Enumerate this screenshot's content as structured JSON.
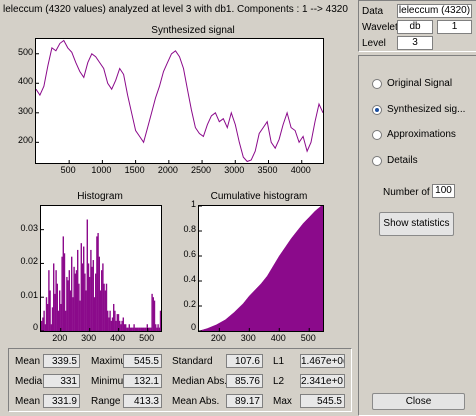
{
  "header": {
    "title": "leleccum (4320 values) analyzed at level 3 with db1.  Components :   1 --> 4320"
  },
  "info": {
    "data_label": "Data",
    "data_value": "leleccum  (4320)",
    "wavelet_label": "Wavelet",
    "wavelet_family": "db",
    "wavelet_order": "1",
    "level_label": "Level",
    "level_value": "3"
  },
  "options": {
    "items": [
      {
        "label": "Original Signal",
        "selected": false
      },
      {
        "label": "Synthesized sig...",
        "selected": true
      },
      {
        "label": "Approximations",
        "selected": false
      },
      {
        "label": "Details",
        "selected": false
      }
    ],
    "number_of_label": "Number of",
    "number_of_value": "100",
    "show_stats_label": "Show statistics",
    "close_label": "Close"
  },
  "colors": {
    "plot": "#8b0a8b",
    "panel": "#d4d0c8",
    "accent": "#1c4fa0"
  },
  "synth": {
    "title": "Synthesized signal",
    "x_ticks": [
      "500",
      "1000",
      "1500",
      "2000",
      "2500",
      "3000",
      "3500",
      "4000"
    ],
    "y_ticks": [
      "500",
      "400",
      "300",
      "200"
    ]
  },
  "hist": {
    "title": "Histogram",
    "x_ticks": [
      "200",
      "300",
      "400",
      "500"
    ],
    "y_ticks": [
      "0.03",
      "0.02",
      "0.01",
      "0"
    ]
  },
  "cumhist": {
    "title": "Cumulative histogram",
    "x_ticks": [
      "200",
      "300",
      "400",
      "500"
    ],
    "y_ticks": [
      "1",
      "0.8",
      "0.6",
      "0.4",
      "0.2",
      "0"
    ]
  },
  "stats": {
    "mean_label": "Mean",
    "mean_value": "339.5",
    "maximum_label": "Maximu",
    "maximum_value": "545.5",
    "std_label": "Standard",
    "std_value": "107.6",
    "l1_label": "L1",
    "l1_value": "1.467e+0(",
    "median_label": "Media",
    "median_value": "331",
    "minimum_label": "Minimu",
    "minimum_value": "132.1",
    "median_abs_label": "Median Abs.",
    "median_abs_value": "85.76",
    "l2_label": "L2",
    "l2_value": "2.341e+0",
    "mode_label": "Mean",
    "mode_value": "331.9",
    "range_label": "Range",
    "range_value": "413.3",
    "mean_abs_label": "Mean Abs.",
    "mean_abs_value": "89.17",
    "max_label": "Max",
    "max_value": "545.5"
  },
  "chart_data": [
    {
      "type": "line",
      "title": "Synthesized signal",
      "xlim": [
        1,
        4320
      ],
      "ylim": [
        130,
        550
      ],
      "x": [
        1,
        60,
        120,
        180,
        240,
        300,
        360,
        420,
        480,
        540,
        600,
        660,
        720,
        780,
        840,
        900,
        960,
        1020,
        1080,
        1140,
        1200,
        1260,
        1320,
        1380,
        1440,
        1500,
        1560,
        1620,
        1680,
        1740,
        1800,
        1860,
        1920,
        1980,
        2040,
        2100,
        2160,
        2220,
        2280,
        2340,
        2400,
        2460,
        2520,
        2580,
        2640,
        2700,
        2760,
        2820,
        2880,
        2940,
        3000,
        3060,
        3120,
        3180,
        3240,
        3300,
        3360,
        3420,
        3480,
        3540,
        3600,
        3660,
        3720,
        3780,
        3840,
        3900,
        3960,
        4020,
        4080,
        4140,
        4200,
        4260,
        4320
      ],
      "y": [
        380,
        360,
        390,
        460,
        520,
        510,
        535,
        545,
        520,
        505,
        470,
        440,
        420,
        470,
        500,
        490,
        470,
        450,
        400,
        380,
        410,
        450,
        430,
        360,
        300,
        240,
        220,
        200,
        250,
        300,
        350,
        390,
        440,
        470,
        500,
        510,
        490,
        450,
        380,
        310,
        250,
        230,
        220,
        260,
        290,
        300,
        270,
        280,
        250,
        300,
        260,
        200,
        150,
        135,
        140,
        170,
        230,
        250,
        270,
        200,
        180,
        210,
        260,
        300,
        250,
        240,
        200,
        220,
        170,
        200,
        270,
        330,
        300
      ]
    },
    {
      "type": "bar",
      "title": "Histogram",
      "xlim": [
        132,
        546
      ],
      "ylim": [
        0,
        0.037
      ],
      "values": [
        0.003,
        0.004,
        0.006,
        0.002,
        0.01,
        0.008,
        0.018,
        0.012,
        0.002,
        0.007,
        0.02,
        0.011,
        0.018,
        0.014,
        0.006,
        0.012,
        0.008,
        0.022,
        0.028,
        0.023,
        0.006,
        0.016,
        0.015,
        0.018,
        0.012,
        0.022,
        0.01,
        0.019,
        0.017,
        0.018,
        0.024,
        0.014,
        0.009,
        0.026,
        0.02,
        0.025,
        0.017,
        0.012,
        0.033,
        0.02,
        0.016,
        0.024,
        0.019,
        0.021,
        0.01,
        0.017,
        0.028,
        0.029,
        0.022,
        0.012,
        0.018,
        0.02,
        0.014,
        0.012,
        0.014,
        0.006,
        0.004,
        0.006,
        0.003,
        0.004,
        0.008,
        0.006,
        0.003,
        0.005,
        0.005,
        0.003,
        0.002,
        0.003,
        0.004,
        0.002,
        0.002,
        0.001,
        0.001,
        0.002,
        0.001,
        0.001,
        0.001,
        0.002,
        0.001,
        0.001,
        0.001,
        0.001,
        0.001,
        0.001,
        0.001,
        0.001,
        0.001,
        0.001,
        0.002,
        0.001,
        0.001,
        0.001,
        0.011,
        0.01,
        0.009,
        0.002,
        0.001,
        0.002,
        0.001,
        0.006
      ]
    },
    {
      "type": "area",
      "title": "Cumulative histogram",
      "xlim": [
        132,
        546
      ],
      "ylim": [
        0,
        1
      ],
      "x": [
        132,
        160,
        190,
        220,
        250,
        280,
        300,
        320,
        340,
        360,
        380,
        400,
        420,
        440,
        460,
        480,
        500,
        520,
        540,
        546
      ],
      "y": [
        0.0,
        0.02,
        0.05,
        0.09,
        0.15,
        0.22,
        0.28,
        0.33,
        0.38,
        0.44,
        0.52,
        0.6,
        0.67,
        0.74,
        0.8,
        0.86,
        0.91,
        0.96,
        1.0,
        1.0
      ]
    }
  ]
}
